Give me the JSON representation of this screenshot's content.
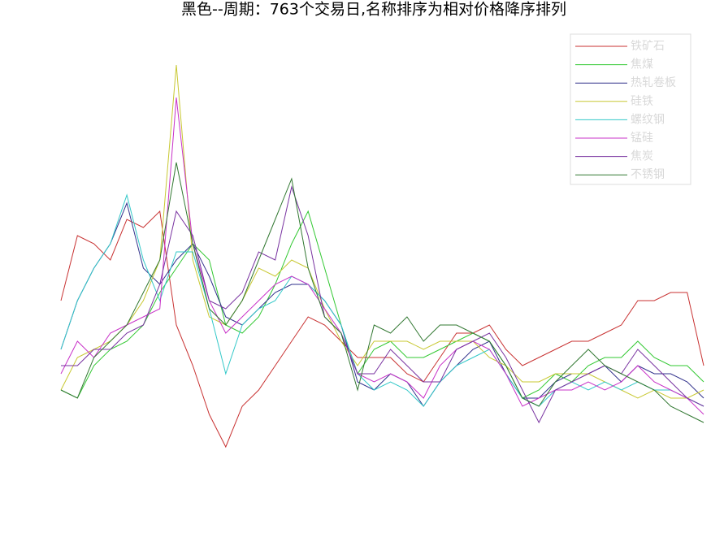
{
  "chart_data": {
    "type": "line",
    "title": "黑色--周期：763个交易日,名称排序为相对价格降序排列",
    "ylim": [
      0,
      600
    ],
    "legend": "upper right",
    "series": [
      {
        "name": "铁矿石",
        "color": "#c83232",
        "values": [
          230,
          310,
          300,
          280,
          330,
          320,
          340,
          200,
          150,
          90,
          50,
          100,
          120,
          150,
          180,
          210,
          200,
          180,
          160,
          160,
          160,
          140,
          130,
          160,
          190,
          190,
          200,
          170,
          150,
          160,
          170,
          180,
          180,
          190,
          200,
          230,
          230,
          240,
          240,
          150
        ]
      },
      {
        "name": "焦煤",
        "color": "#32c832",
        "values": [
          120,
          110,
          150,
          170,
          180,
          200,
          240,
          270,
          300,
          280,
          200,
          190,
          210,
          250,
          300,
          340,
          270,
          200,
          140,
          170,
          180,
          160,
          160,
          170,
          180,
          190,
          180,
          150,
          110,
          120,
          140,
          130,
          150,
          160,
          160,
          180,
          160,
          150,
          150,
          130
        ]
      },
      {
        "name": "热轧卷板",
        "color": "#32328c",
        "values": [
          170,
          230,
          270,
          300,
          350,
          270,
          250,
          280,
          300,
          260,
          210,
          200,
          220,
          240,
          250,
          250,
          230,
          200,
          130,
          120,
          140,
          130,
          100,
          130,
          150,
          170,
          180,
          140,
          110,
          110,
          130,
          140,
          140,
          150,
          130,
          150,
          140,
          140,
          130,
          110
        ]
      },
      {
        "name": "硅铁",
        "color": "#c8c832",
        "values": [
          120,
          160,
          170,
          180,
          200,
          230,
          280,
          520,
          280,
          210,
          200,
          230,
          270,
          260,
          280,
          270,
          220,
          180,
          150,
          180,
          180,
          180,
          170,
          180,
          180,
          180,
          160,
          150,
          130,
          130,
          140,
          140,
          140,
          130,
          120,
          110,
          120,
          110,
          110,
          120
        ]
      },
      {
        "name": "螺纹钢",
        "color": "#32c8c8",
        "values": [
          170,
          230,
          270,
          300,
          360,
          280,
          230,
          290,
          290,
          220,
          140,
          200,
          220,
          230,
          260,
          250,
          230,
          200,
          140,
          120,
          130,
          120,
          100,
          130,
          150,
          160,
          170,
          140,
          110,
          100,
          120,
          130,
          120,
          130,
          120,
          130,
          120,
          120,
          110,
          100
        ]
      },
      {
        "name": "锰硅",
        "color": "#c832c8",
        "values": [
          140,
          180,
          160,
          190,
          200,
          210,
          220,
          480,
          300,
          230,
          190,
          210,
          230,
          250,
          260,
          250,
          220,
          190,
          140,
          130,
          140,
          130,
          110,
          150,
          170,
          180,
          170,
          140,
          100,
          110,
          120,
          120,
          130,
          120,
          130,
          150,
          130,
          120,
          110,
          90
        ]
      },
      {
        "name": "焦炭",
        "color": "#7832a0",
        "values": [
          150,
          150,
          170,
          170,
          190,
          200,
          250,
          340,
          310,
          230,
          220,
          240,
          290,
          280,
          370,
          310,
          210,
          190,
          140,
          140,
          170,
          150,
          130,
          130,
          170,
          180,
          190,
          160,
          120,
          80,
          120,
          130,
          140,
          150,
          140,
          170,
          150,
          130,
          110,
          100
        ]
      },
      {
        "name": "不锈钢",
        "color": "#327832",
        "values": [
          120,
          110,
          160,
          180,
          200,
          240,
          280,
          400,
          300,
          220,
          200,
          230,
          280,
          330,
          380,
          270,
          210,
          190,
          120,
          200,
          190,
          210,
          180,
          200,
          200,
          190,
          180,
          150,
          110,
          100,
          130,
          150,
          170,
          150,
          140,
          130,
          120,
          100,
          90,
          80
        ]
      }
    ]
  }
}
